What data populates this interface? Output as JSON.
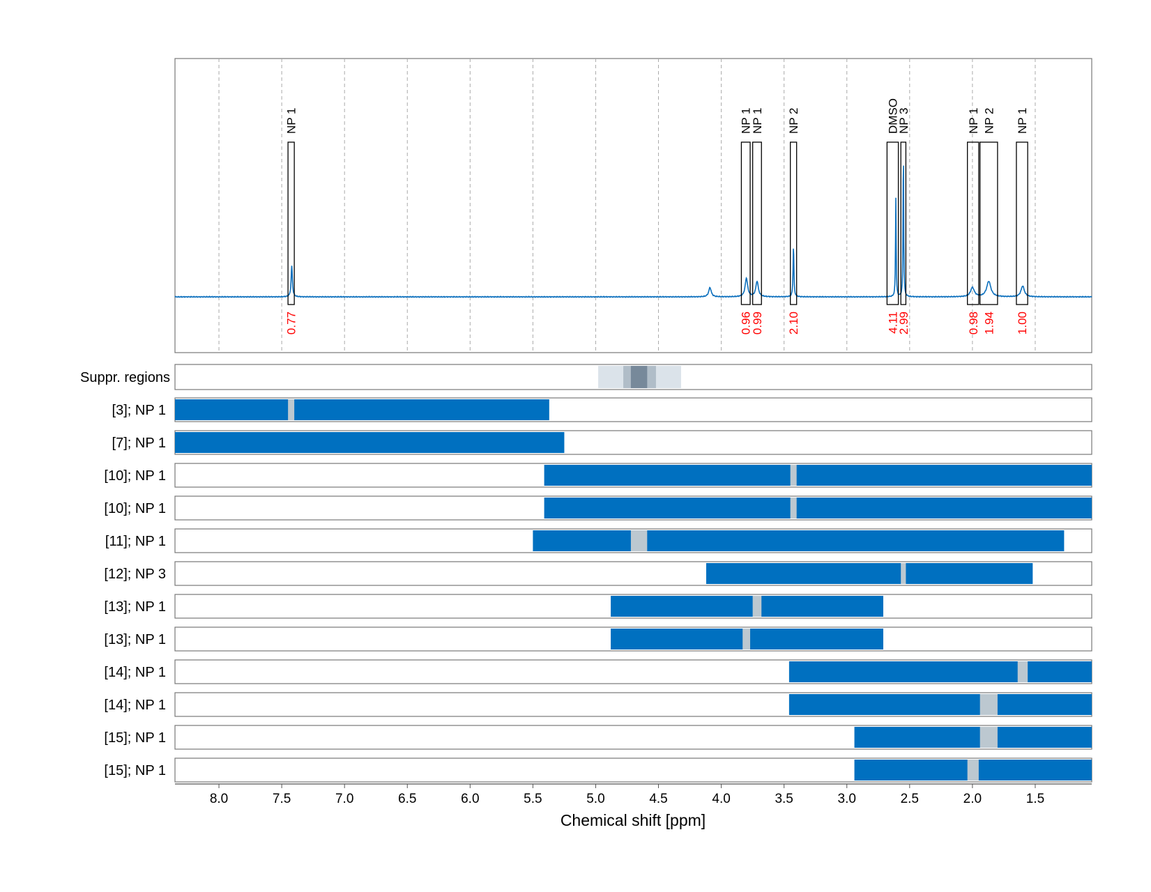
{
  "chart_data": {
    "type": "line",
    "title": "",
    "xlabel": "Chemical shift [ppm]",
    "xlim": [
      8.35,
      1.05
    ],
    "x_ticks": [
      "8.0",
      "7.5",
      "7.0",
      "6.5",
      "6.0",
      "5.5",
      "5.0",
      "4.5",
      "4.0",
      "3.5",
      "3.0",
      "2.5",
      "2.0",
      "1.5"
    ],
    "grid": "vertical dashed",
    "colors": {
      "spectrum": "#0b6fbd",
      "bar": "#0070c0",
      "gap": "#bcc8d0",
      "integral": "#ff0000",
      "suppr_light": "#dbe3ea",
      "suppr_mid": "#b0bdc8",
      "suppr_dark": "#77899a"
    },
    "spectrum_peaks": [
      {
        "ppm": 7.42,
        "height": 0.2,
        "width": 0.006
      },
      {
        "ppm": 4.09,
        "height": 0.06,
        "width": 0.012
      },
      {
        "ppm": 3.8,
        "height": 0.12,
        "width": 0.012
      },
      {
        "ppm": 3.715,
        "height": 0.1,
        "width": 0.012
      },
      {
        "ppm": 3.425,
        "height": 0.33,
        "width": 0.004
      },
      {
        "ppm": 2.61,
        "height": 0.64,
        "width": 0.003
      },
      {
        "ppm": 2.55,
        "height": 0.97,
        "width": 0.003
      },
      {
        "ppm": 2.0,
        "height": 0.06,
        "width": 0.018
      },
      {
        "ppm": 1.87,
        "height": 0.1,
        "width": 0.02
      },
      {
        "ppm": 1.6,
        "height": 0.07,
        "width": 0.016
      }
    ],
    "annotations": [
      {
        "label": "NP 1",
        "range": [
          7.45,
          7.4
        ],
        "integral": "0.77"
      },
      {
        "label": "NP 1",
        "range": [
          3.84,
          3.77
        ],
        "integral": "0.96"
      },
      {
        "label": "NP 1",
        "range": [
          3.75,
          3.68
        ],
        "integral": "0.99"
      },
      {
        "label": "NP 2",
        "range": [
          3.45,
          3.4
        ],
        "integral": "2.10"
      },
      {
        "label": "DMSO",
        "range": [
          2.68,
          2.59
        ],
        "integral": "4.11"
      },
      {
        "label": "NP 3",
        "range": [
          2.57,
          2.53
        ],
        "integral": "2.99"
      },
      {
        "label": "NP 1",
        "range": [
          2.04,
          1.95
        ],
        "integral": "0.98"
      },
      {
        "label": "NP 2",
        "range": [
          1.94,
          1.8
        ],
        "integral": "1.94"
      },
      {
        "label": "NP 1",
        "range": [
          1.65,
          1.56
        ],
        "integral": "1.00"
      }
    ],
    "suppressed_regions": {
      "label": "Suppr. regions",
      "bands": [
        {
          "range": [
            4.98,
            4.32
          ],
          "level": "light"
        },
        {
          "range": [
            4.78,
            4.52
          ],
          "level": "mid"
        },
        {
          "range": [
            4.72,
            4.59
          ],
          "level": "dark"
        }
      ]
    },
    "rows": [
      {
        "label": "[3]; NP 1",
        "range": [
          8.35,
          5.37
        ],
        "gap": [
          7.45,
          7.4
        ]
      },
      {
        "label": "[7]; NP 1",
        "range": [
          8.35,
          5.25
        ],
        "gap": null
      },
      {
        "label": "[10]; NP 1",
        "range": [
          5.41,
          1.05
        ],
        "gap": [
          3.45,
          3.4
        ]
      },
      {
        "label": "[10]; NP 1",
        "range": [
          5.41,
          1.05
        ],
        "gap": [
          3.45,
          3.4
        ]
      },
      {
        "label": "[11]; NP 1",
        "range": [
          5.5,
          1.27
        ],
        "gap": [
          4.72,
          4.59
        ]
      },
      {
        "label": "[12]; NP 3",
        "range": [
          4.12,
          1.52
        ],
        "gap": [
          2.57,
          2.53
        ]
      },
      {
        "label": "[13]; NP 1",
        "range": [
          4.88,
          2.71
        ],
        "gap": [
          3.75,
          3.68
        ]
      },
      {
        "label": "[13]; NP 1",
        "range": [
          4.88,
          2.71
        ],
        "gap": [
          3.83,
          3.77
        ]
      },
      {
        "label": "[14]; NP 1",
        "range": [
          3.46,
          1.05
        ],
        "gap": [
          1.64,
          1.56
        ]
      },
      {
        "label": "[14]; NP 1",
        "range": [
          3.46,
          1.05
        ],
        "gap": [
          1.94,
          1.8
        ]
      },
      {
        "label": "[15]; NP 1",
        "range": [
          2.94,
          1.05
        ],
        "gap": [
          1.94,
          1.8
        ]
      },
      {
        "label": "[15]; NP 1",
        "range": [
          2.94,
          1.05
        ],
        "gap": [
          2.04,
          1.95
        ]
      }
    ]
  }
}
